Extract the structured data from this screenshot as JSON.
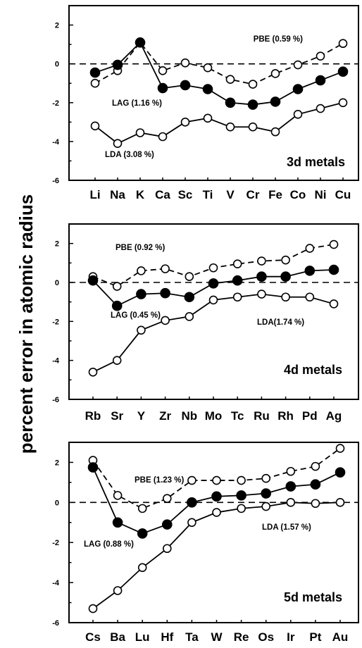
{
  "ylabel": "percent error in atomic radius",
  "chart_data": [
    {
      "type": "line",
      "title": "3d metals",
      "categories": [
        "Li",
        "Na",
        "K",
        "Ca",
        "Sc",
        "Ti",
        "V",
        "Cr",
        "Fe",
        "Co",
        "Ni",
        "Cu"
      ],
      "yticks": [
        2,
        0,
        -2,
        -4,
        -6
      ],
      "ylim": [
        -6,
        3
      ],
      "series": [
        {
          "name": "PBE (0.59 %)",
          "marker": "open",
          "line": "dashed",
          "values": [
            -1.0,
            -0.35,
            1.1,
            -0.35,
            0.05,
            -0.2,
            -0.8,
            -1.05,
            -0.5,
            -0.05,
            0.4,
            1.05
          ]
        },
        {
          "name": "LAG (1.16 %)",
          "marker": "filled",
          "line": "solid",
          "values": [
            -0.45,
            -0.05,
            1.1,
            -1.25,
            -1.1,
            -1.3,
            -2.0,
            -2.1,
            -1.95,
            -1.3,
            -0.85,
            -0.4
          ]
        },
        {
          "name": "LDA (3.08 %)",
          "marker": "open",
          "line": "solid",
          "values": [
            -3.2,
            -4.1,
            -3.55,
            -3.75,
            -3.0,
            -2.8,
            -3.25,
            -3.25,
            -3.5,
            -2.6,
            -2.3,
            -2.0
          ]
        }
      ]
    },
    {
      "type": "line",
      "title": "4d metals",
      "categories": [
        "Rb",
        "Sr",
        "Y",
        "Zr",
        "Nb",
        "Mo",
        "Tc",
        "Ru",
        "Rh",
        "Pd",
        "Ag"
      ],
      "yticks": [
        2,
        0,
        -2,
        -4,
        -6
      ],
      "ylim": [
        -6,
        3
      ],
      "series": [
        {
          "name": "PBE (0.92 %)",
          "marker": "open",
          "line": "dashed",
          "values": [
            0.3,
            -0.2,
            0.6,
            0.7,
            0.3,
            0.75,
            0.95,
            1.1,
            1.15,
            1.75,
            1.95
          ]
        },
        {
          "name": "LAG (0.45 %)",
          "marker": "filled",
          "line": "solid",
          "values": [
            0.1,
            -1.2,
            -0.6,
            -0.55,
            -0.75,
            -0.05,
            0.1,
            0.3,
            0.3,
            0.6,
            0.65
          ]
        },
        {
          "name": "LDA(1.74 %)",
          "marker": "open",
          "line": "solid",
          "values": [
            -4.6,
            -4.0,
            -2.45,
            -1.95,
            -1.75,
            -0.9,
            -0.75,
            -0.6,
            -0.75,
            -0.75,
            -1.1
          ]
        }
      ]
    },
    {
      "type": "line",
      "title": "5d metals",
      "categories": [
        "Cs",
        "Ba",
        "Lu",
        "Hf",
        "Ta",
        "W",
        "Re",
        "Os",
        "Ir",
        "Pt",
        "Au"
      ],
      "yticks": [
        2,
        0,
        -2,
        -4,
        -6
      ],
      "ylim": [
        -6,
        3
      ],
      "series": [
        {
          "name": "PBE (1.23 %)",
          "marker": "open",
          "line": "dashed",
          "values": [
            2.1,
            0.35,
            -0.3,
            0.2,
            1.1,
            1.1,
            1.1,
            1.2,
            1.55,
            1.8,
            2.7
          ]
        },
        {
          "name": "LAG (0.88 %)",
          "marker": "filled",
          "line": "solid",
          "values": [
            1.75,
            -1.0,
            -1.55,
            -1.1,
            0.0,
            0.3,
            0.35,
            0.45,
            0.8,
            0.9,
            1.5
          ]
        },
        {
          "name": "LDA (1.57 %)",
          "marker": "open",
          "line": "solid",
          "values": [
            -5.3,
            -4.4,
            -3.25,
            -2.3,
            -1.0,
            -0.5,
            -0.3,
            -0.2,
            0.0,
            -0.05,
            0.0
          ]
        }
      ]
    }
  ]
}
